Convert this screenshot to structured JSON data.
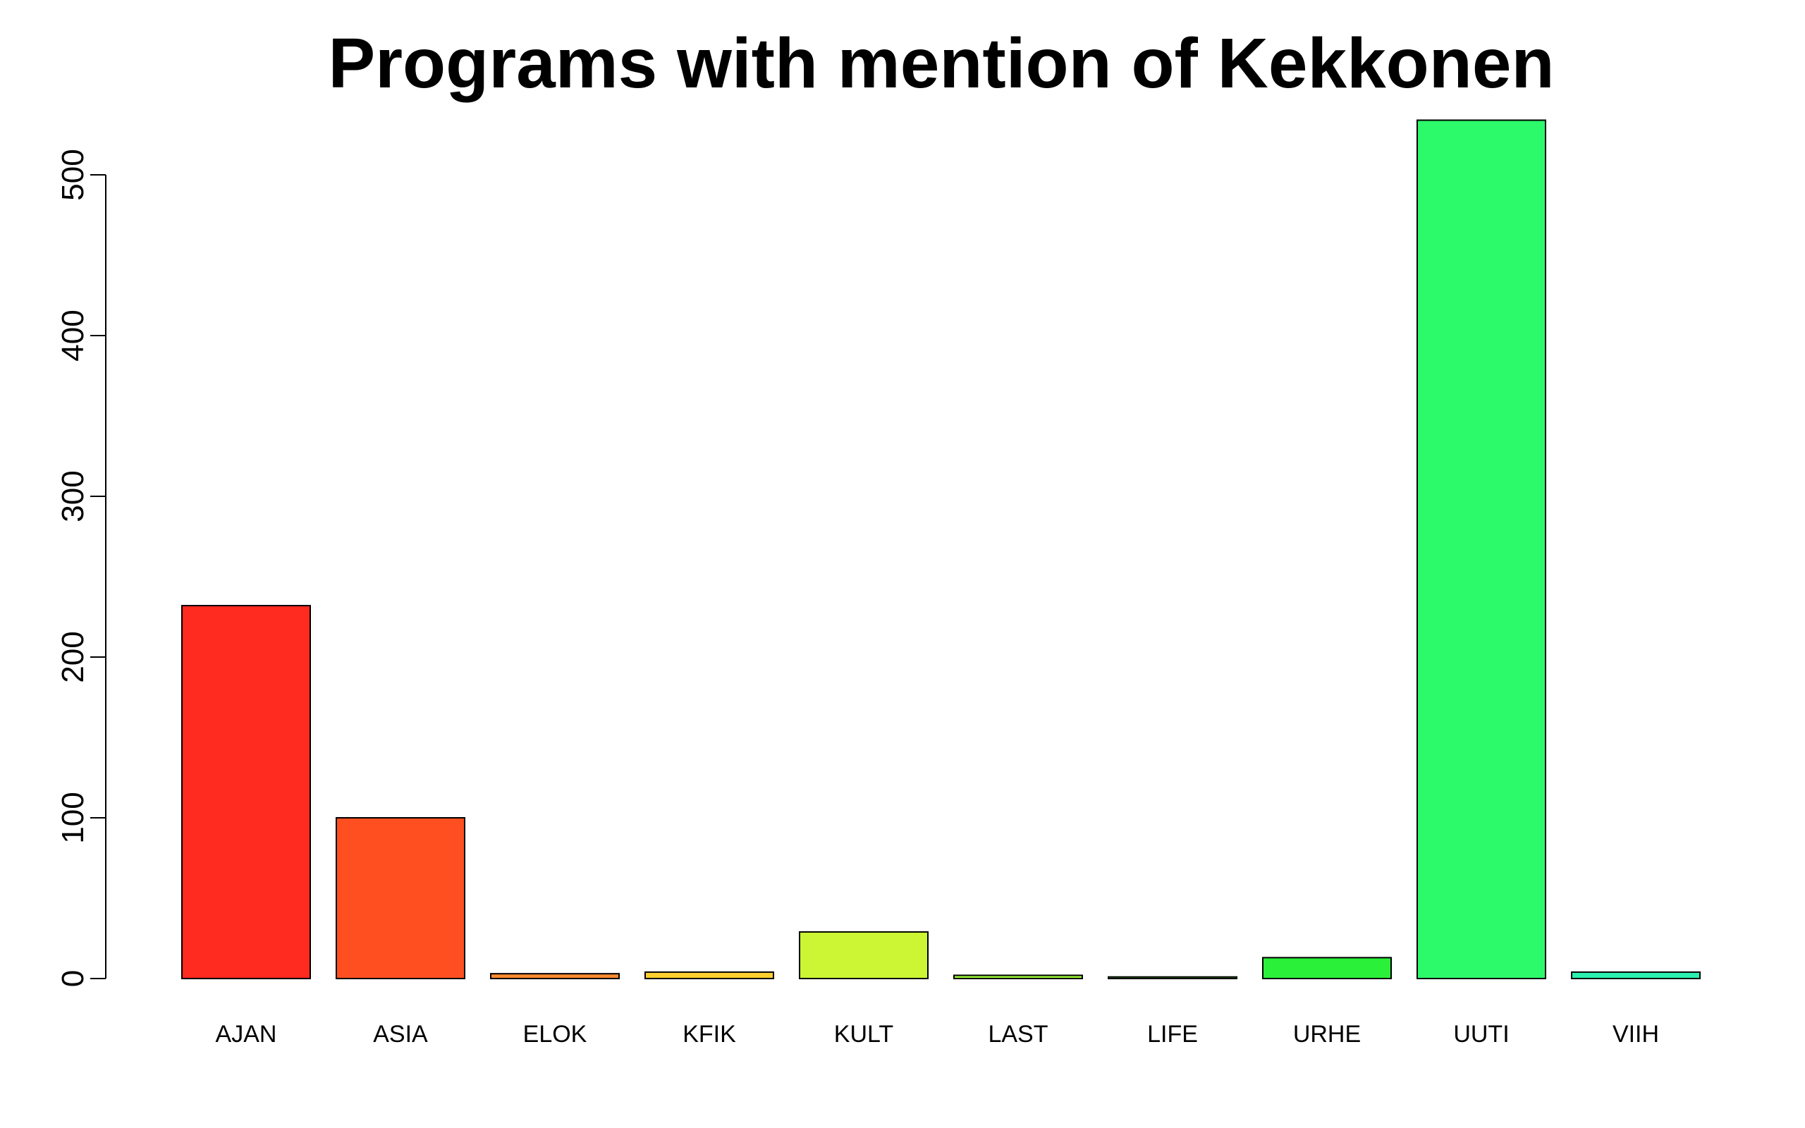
{
  "chart_data": {
    "type": "bar",
    "title": "Programs with mention of Kekkonen",
    "xlabel": "",
    "ylabel": "",
    "categories": [
      "AJAN",
      "ASIA",
      "ELOK",
      "KFIK",
      "KULT",
      "LAST",
      "LIFE",
      "URHE",
      "UUTI",
      "VIIH"
    ],
    "values": [
      232,
      100,
      3,
      4,
      29,
      2,
      1,
      13,
      534,
      4
    ],
    "colors": [
      "#FF2A20",
      "#FF4F20",
      "#FF8A30",
      "#FFD030",
      "#CCF533",
      "#9AF535",
      "#5CF035",
      "#2AF03A",
      "#2DFA6A",
      "#2AF0B0"
    ],
    "yticks": [
      0,
      100,
      200,
      300,
      400,
      500
    ],
    "ytick_labels": [
      "0",
      "100",
      "200",
      "300",
      "400",
      "500"
    ],
    "ylim": [
      0,
      534
    ],
    "grid": false,
    "legend": "none"
  }
}
